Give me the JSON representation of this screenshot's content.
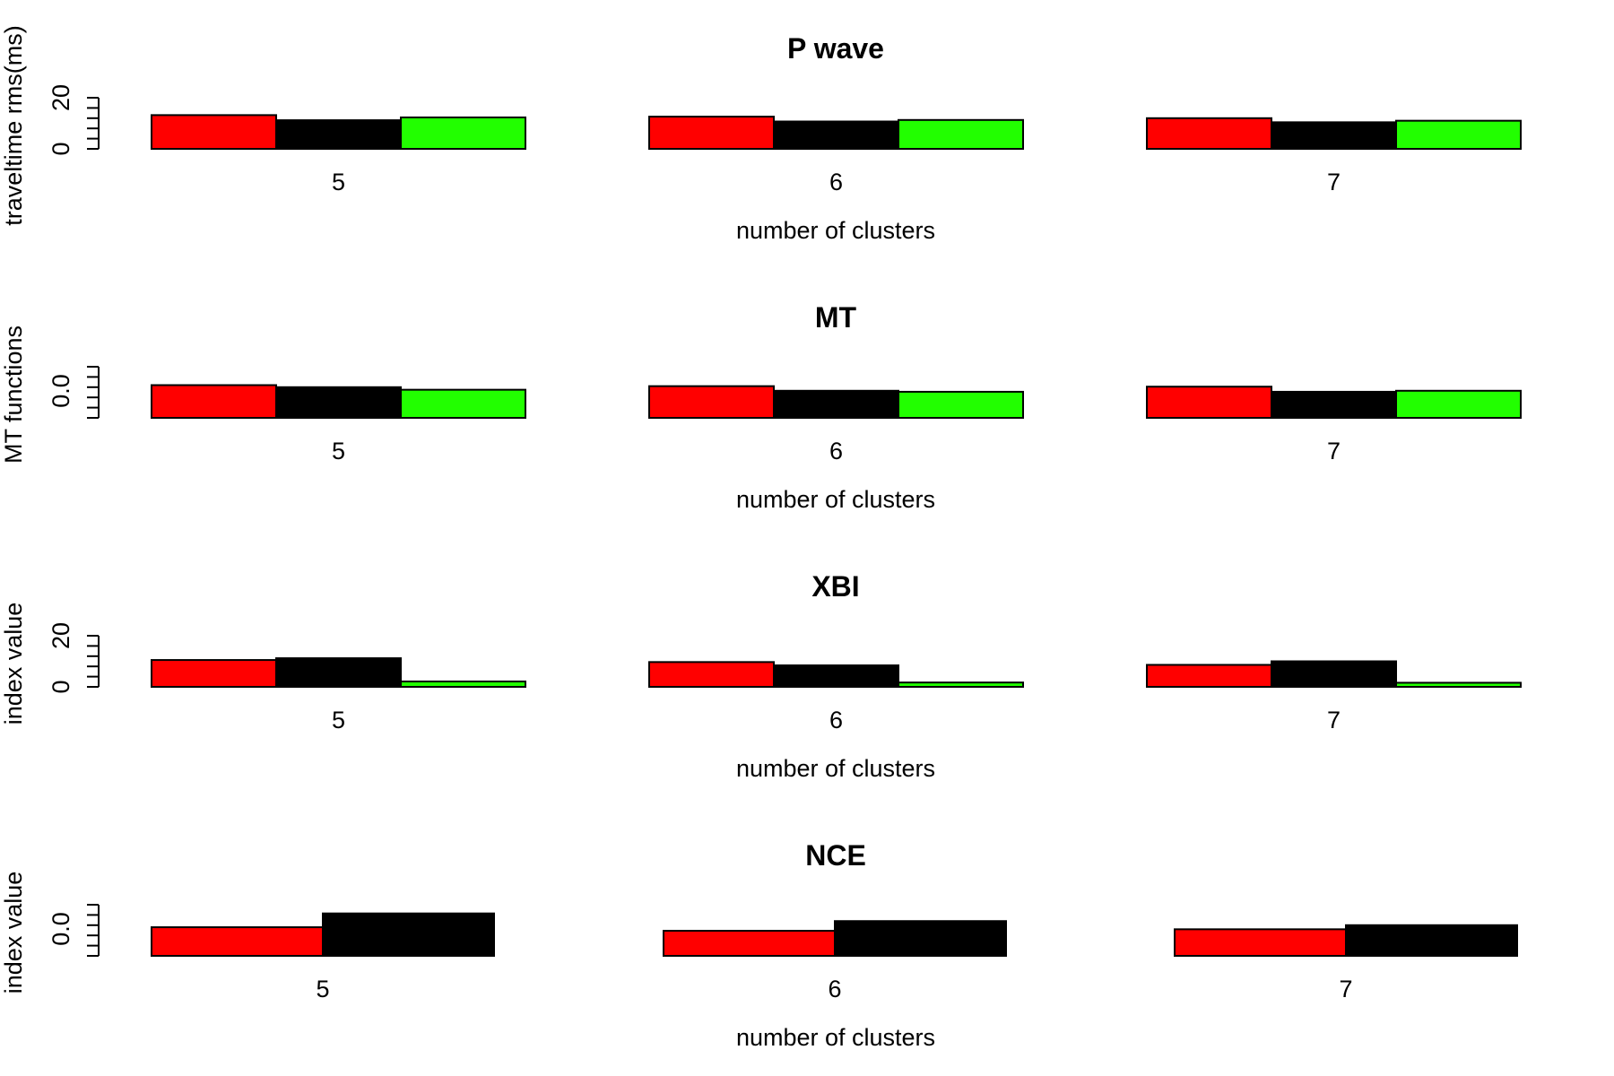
{
  "colors": {
    "series_1": "#ff0000",
    "series_2": "#000000",
    "series_3": "#00ff00"
  },
  "chart_data": [
    {
      "type": "bar",
      "title": "P wave",
      "xlabel": "number of clusters",
      "ylabel": "traveltime rms(ms)",
      "categories": [
        "5",
        "6",
        "7"
      ],
      "ytick_labels": [
        "0",
        "20"
      ],
      "ylim": [
        0,
        20
      ],
      "series": [
        {
          "values": [
            13.2,
            12.6,
            12.0
          ],
          "color": "#ff0000"
        },
        {
          "values": [
            11.2,
            10.7,
            10.4
          ],
          "color": "#000000"
        },
        {
          "values": [
            12.3,
            11.3,
            11.0
          ],
          "color": "#22ff00"
        }
      ]
    },
    {
      "type": "bar",
      "title": "MT",
      "xlabel": "number of clusters",
      "ylabel": "MT functions",
      "categories": [
        "5",
        "6",
        "7"
      ],
      "ytick_labels": [
        "0.0"
      ],
      "ylim": [
        0,
        1
      ],
      "series": [
        {
          "values": [
            0.64,
            0.62,
            0.61
          ],
          "color": "#ff0000"
        },
        {
          "values": [
            0.6,
            0.53,
            0.51
          ],
          "color": "#000000"
        },
        {
          "values": [
            0.55,
            0.51,
            0.53
          ],
          "color": "#22ff00"
        }
      ]
    },
    {
      "type": "bar",
      "title": "XBI",
      "xlabel": "number of clusters",
      "ylabel": "index value",
      "categories": [
        "5",
        "6",
        "7"
      ],
      "ytick_labels": [
        "0",
        "20"
      ],
      "ylim": [
        0,
        20
      ],
      "series": [
        {
          "values": [
            10.5,
            9.7,
            8.6
          ],
          "color": "#ff0000"
        },
        {
          "values": [
            11.2,
            8.4,
            10.0
          ],
          "color": "#000000"
        },
        {
          "values": [
            2.1,
            1.7,
            1.6
          ],
          "color": "#22ff00"
        }
      ]
    },
    {
      "type": "bar",
      "title": "NCE",
      "xlabel": "number of clusters",
      "ylabel": "index value",
      "categories": [
        "5",
        "6",
        "7"
      ],
      "ytick_labels": [
        "0.0"
      ],
      "ylim": [
        0,
        1
      ],
      "series": [
        {
          "values": [
            0.56,
            0.49,
            0.52
          ],
          "color": "#ff0000"
        },
        {
          "values": [
            0.83,
            0.68,
            0.6
          ],
          "color": "#000000"
        }
      ]
    }
  ]
}
